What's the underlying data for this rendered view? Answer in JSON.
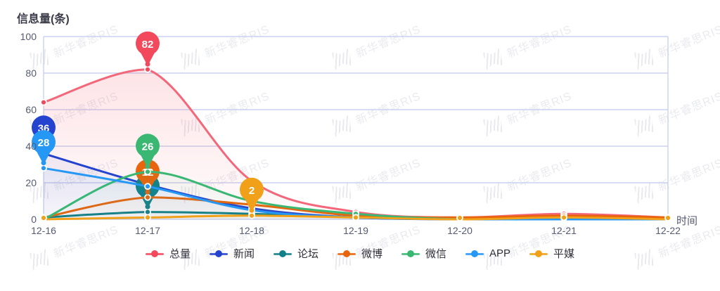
{
  "title": "信息量(条)",
  "watermark": {
    "text": "新华睿思RIS"
  },
  "axes": {
    "y_name": "信息量(条)",
    "x_name": "时间"
  },
  "chart_data": {
    "type": "line",
    "title": "信息量(条)",
    "xlabel": "时间",
    "ylabel": "信息量(条)",
    "smooth": true,
    "grid": true,
    "legend_position": "bottom",
    "categories": [
      "12-16",
      "12-17",
      "12-18",
      "12-19",
      "12-20",
      "12-21",
      "12-22"
    ],
    "ylim": [
      0,
      100
    ],
    "yticks": [
      0,
      20,
      40,
      60,
      80,
      100
    ],
    "series": [
      {
        "name": "总量",
        "color": "#f2495c",
        "line_color": "#f3677a",
        "values": [
          64,
          82,
          21,
          4,
          1,
          3,
          1
        ]
      },
      {
        "name": "新闻",
        "color": "#2443cf",
        "line_color": "#2443cf",
        "values": [
          36,
          19,
          6,
          1,
          0,
          0,
          0
        ]
      },
      {
        "name": "论坛",
        "color": "#128089",
        "line_color": "#128089",
        "values": [
          1,
          4,
          3,
          1,
          0,
          0,
          0
        ]
      },
      {
        "name": "微博",
        "color": "#e8650d",
        "line_color": "#e8650d",
        "values": [
          1,
          12,
          8,
          2,
          1,
          2,
          1
        ]
      },
      {
        "name": "微信",
        "color": "#3ab873",
        "line_color": "#3ab873",
        "values": [
          0,
          26,
          10,
          3,
          0,
          0,
          0
        ]
      },
      {
        "name": "APP",
        "color": "#2598f5",
        "line_color": "#2598f5",
        "values": [
          28,
          18,
          5,
          1,
          0,
          0,
          0
        ]
      },
      {
        "name": "平媒",
        "color": "#f0a019",
        "line_color": "#f0a019",
        "values": [
          0,
          1,
          2,
          1,
          0,
          1,
          0
        ]
      }
    ],
    "max_markers": [
      {
        "series": "总量",
        "category": "12-17",
        "value": 82
      },
      {
        "series": "新闻",
        "category": "12-16",
        "value": 36
      },
      {
        "series": "论坛",
        "category": "12-17",
        "value": 4
      },
      {
        "series": "微博",
        "category": "12-17",
        "value": 12
      },
      {
        "series": "微信",
        "category": "12-17",
        "value": 26
      },
      {
        "series": "APP",
        "category": "12-16",
        "value": 28
      },
      {
        "series": "平媒",
        "category": "12-18",
        "value": 2
      }
    ]
  },
  "colors": {
    "grid_line": "#c9d2f0",
    "axis_line": "#c9d2f0",
    "tick_text": "#545a72",
    "title_text": "#3b3b4a"
  }
}
